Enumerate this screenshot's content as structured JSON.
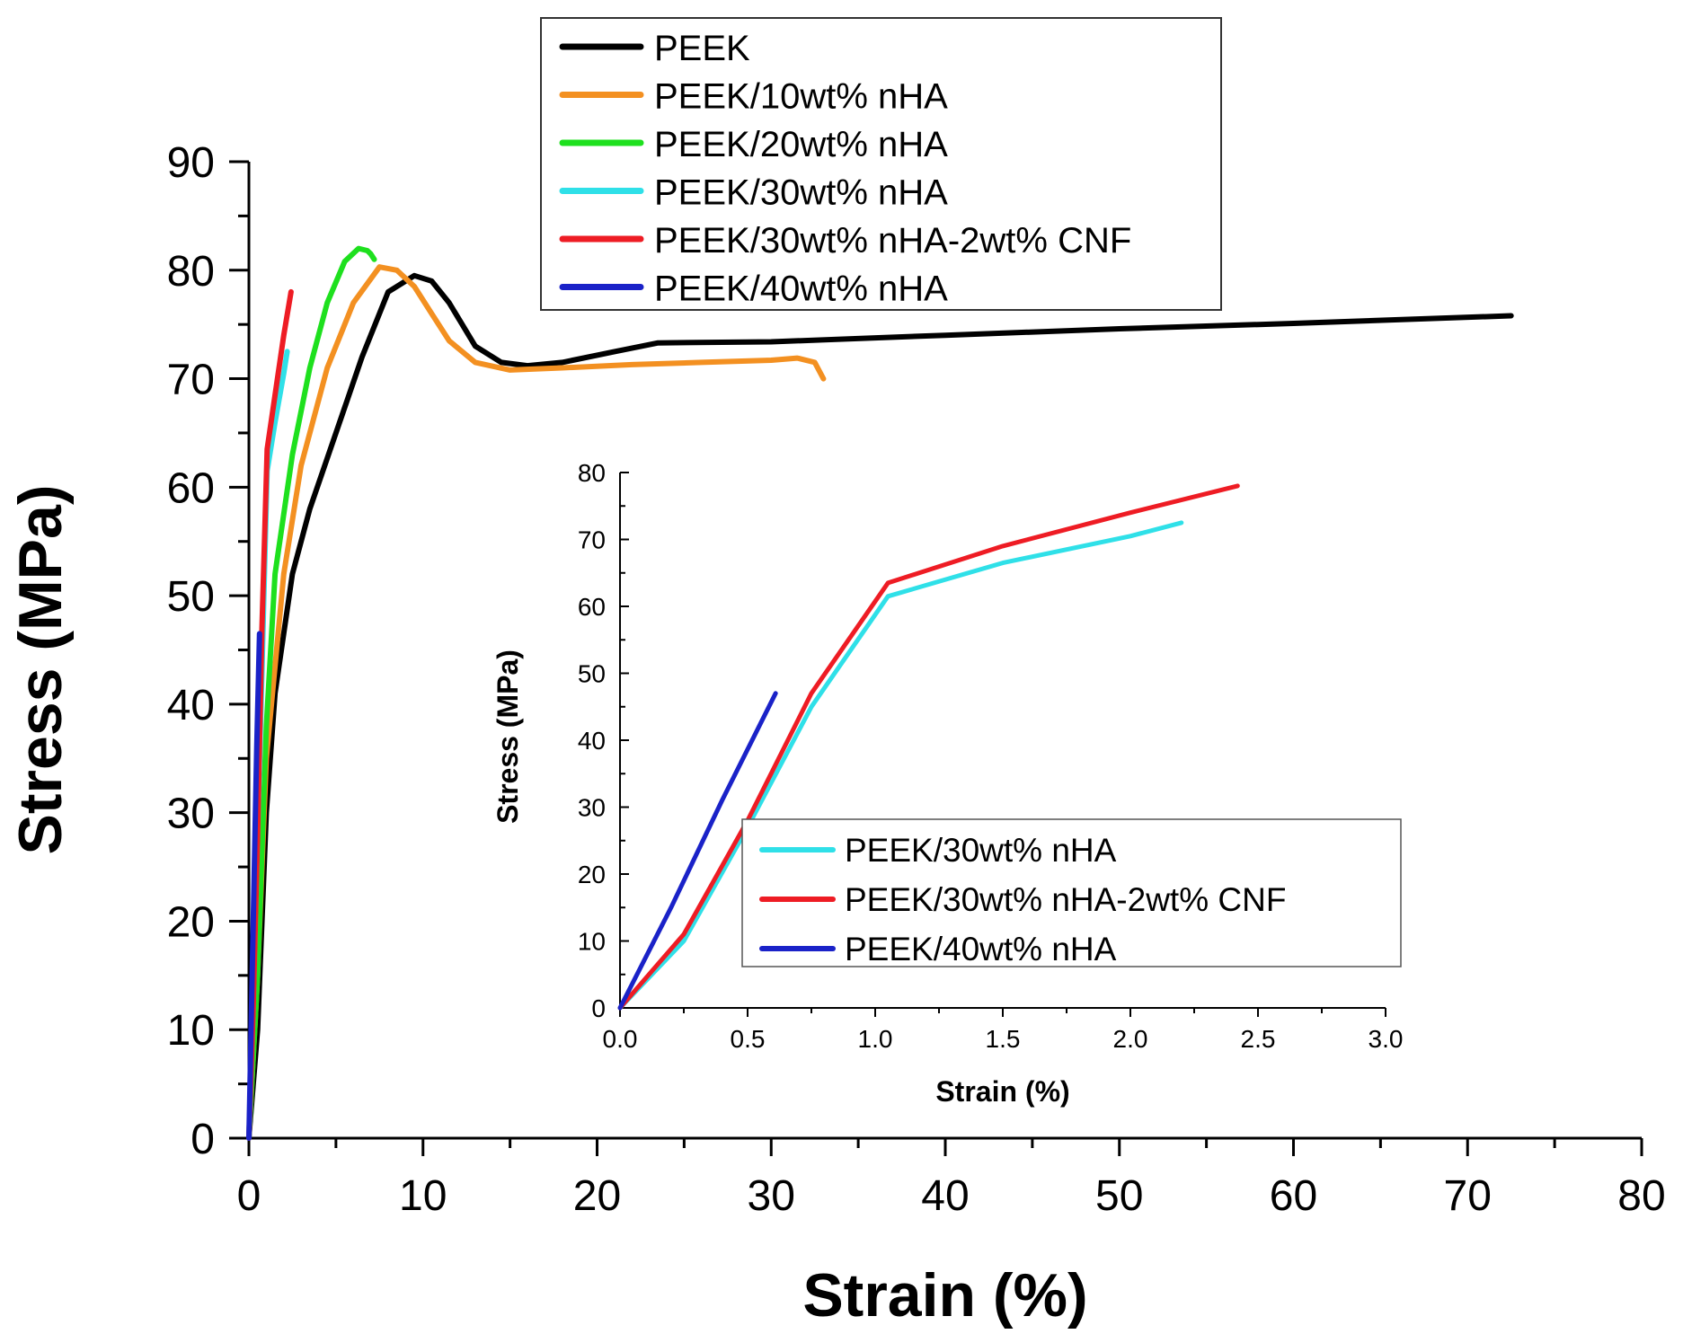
{
  "chart_data": [
    {
      "type": "line",
      "xlabel": "Strain (%)",
      "ylabel": "Stress (MPa)",
      "xlim": [
        0,
        80
      ],
      "ylim": [
        0,
        90
      ],
      "xticks": [
        0,
        10,
        20,
        30,
        40,
        50,
        60,
        70,
        80
      ],
      "yticks": [
        0,
        10,
        20,
        30,
        40,
        50,
        60,
        70,
        80,
        90
      ],
      "grid": false,
      "legend_position": "top-center",
      "series": [
        {
          "name": "PEEK",
          "color": "#000000",
          "points": [
            [
              0,
              0
            ],
            [
              0.5,
              10
            ],
            [
              1,
              30
            ],
            [
              1.5,
              41
            ],
            [
              2.5,
              52
            ],
            [
              3.5,
              58
            ],
            [
              5,
              65
            ],
            [
              6.5,
              72
            ],
            [
              8,
              78
            ],
            [
              9.5,
              79.5
            ],
            [
              10.5,
              79
            ],
            [
              11.5,
              77
            ],
            [
              13,
              73
            ],
            [
              14.5,
              71.5
            ],
            [
              16,
              71.2
            ],
            [
              18,
              71.5
            ],
            [
              21,
              72.5
            ],
            [
              23.5,
              73.3
            ],
            [
              30,
              73.4
            ],
            [
              40,
              74
            ],
            [
              50,
              74.6
            ],
            [
              60,
              75.1
            ],
            [
              72.5,
              75.8
            ]
          ]
        },
        {
          "name": "PEEK/10wt% nHA",
          "color": "#f39021",
          "points": [
            [
              0,
              0
            ],
            [
              0.5,
              15
            ],
            [
              1,
              35
            ],
            [
              2,
              52
            ],
            [
              3,
              62
            ],
            [
              4.5,
              71
            ],
            [
              6,
              77
            ],
            [
              7.5,
              80.3
            ],
            [
              8.5,
              80
            ],
            [
              9.5,
              78.5
            ],
            [
              10.5,
              76
            ],
            [
              11.5,
              73.5
            ],
            [
              13,
              71.5
            ],
            [
              15,
              70.8
            ],
            [
              18,
              71
            ],
            [
              22,
              71.3
            ],
            [
              26,
              71.5
            ],
            [
              30,
              71.7
            ],
            [
              31.5,
              71.9
            ],
            [
              32.5,
              71.5
            ],
            [
              33,
              70
            ]
          ]
        },
        {
          "name": "PEEK/20wt% nHA",
          "color": "#1ee01e",
          "points": [
            [
              0,
              0
            ],
            [
              0.5,
              15
            ],
            [
              1,
              38
            ],
            [
              1.5,
              52
            ],
            [
              2.5,
              63
            ],
            [
              3.5,
              71
            ],
            [
              4.5,
              77
            ],
            [
              5.5,
              80.8
            ],
            [
              6.3,
              82
            ],
            [
              6.8,
              81.8
            ],
            [
              7,
              81.5
            ],
            [
              7.2,
              81
            ]
          ]
        },
        {
          "name": "PEEK/30wt% nHA",
          "color": "#2fe0e8",
          "points": [
            [
              0,
              0
            ],
            [
              0.25,
              12
            ],
            [
              0.5,
              28
            ],
            [
              0.75,
              43
            ],
            [
              1.05,
              61.5
            ],
            [
              1.5,
              66
            ],
            [
              2.0,
              70.5
            ],
            [
              2.2,
              72.5
            ]
          ]
        },
        {
          "name": "PEEK/30wt% nHA-2wt% CNF",
          "color": "#ee1c24",
          "points": [
            [
              0,
              0
            ],
            [
              0.25,
              12
            ],
            [
              0.5,
              28
            ],
            [
              0.75,
              47
            ],
            [
              1.05,
              63.5
            ],
            [
              1.5,
              68.5
            ],
            [
              2.0,
              74
            ],
            [
              2.42,
              78
            ]
          ]
        },
        {
          "name": "PEEK/40wt% nHA",
          "color": "#1a22c8",
          "points": [
            [
              0,
              0
            ],
            [
              0.15,
              12
            ],
            [
              0.3,
              24
            ],
            [
              0.45,
              36
            ],
            [
              0.61,
              46.5
            ]
          ]
        }
      ]
    },
    {
      "type": "line",
      "xlabel": "Strain (%)",
      "ylabel": "Stress (MPa)",
      "xlim": [
        0,
        3.0
      ],
      "ylim": [
        0,
        80
      ],
      "xticks": [
        "0.0",
        "0.5",
        "1.0",
        "1.5",
        "2.0",
        "2.5",
        "3.0"
      ],
      "yticks": [
        "0",
        "10",
        "20",
        "30",
        "40",
        "50",
        "60",
        "70",
        "80"
      ],
      "grid": false,
      "legend_position": "bottom-right",
      "series": [
        {
          "name": "PEEK/30wt% nHA",
          "color": "#2fe0e8",
          "points": [
            [
              0,
              0
            ],
            [
              0.25,
              10
            ],
            [
              0.5,
              27
            ],
            [
              0.75,
              45
            ],
            [
              1.05,
              61.5
            ],
            [
              1.5,
              66.5
            ],
            [
              2.0,
              70.5
            ],
            [
              2.2,
              72.5
            ]
          ]
        },
        {
          "name": "PEEK/30wt% nHA-2wt% CNF",
          "color": "#ee1c24",
          "points": [
            [
              0,
              0
            ],
            [
              0.25,
              11
            ],
            [
              0.5,
              28
            ],
            [
              0.75,
              47
            ],
            [
              1.05,
              63.5
            ],
            [
              1.5,
              69
            ],
            [
              2.0,
              74
            ],
            [
              2.42,
              78
            ]
          ]
        },
        {
          "name": "PEEK/40wt% nHA",
          "color": "#1a22c8",
          "points": [
            [
              0,
              0
            ],
            [
              0.2,
              15
            ],
            [
              0.4,
              31
            ],
            [
              0.61,
              47
            ]
          ]
        }
      ]
    }
  ]
}
